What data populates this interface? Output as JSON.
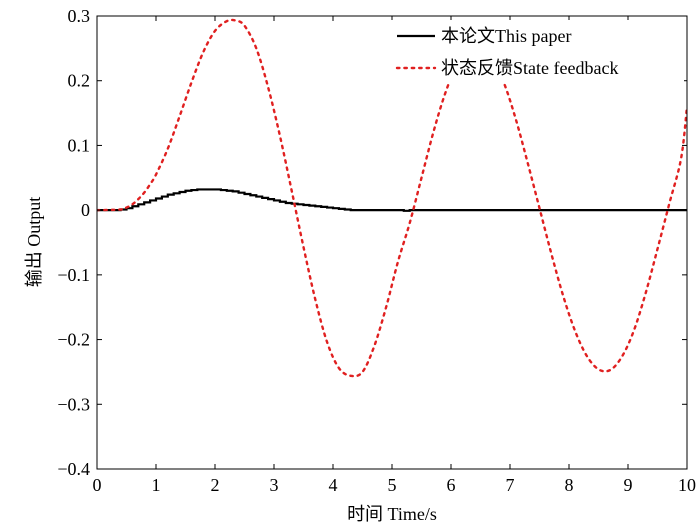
{
  "chart_data": {
    "type": "line",
    "title": "",
    "xlabel": "时间 Time/s",
    "ylabel": "输出 Output",
    "xlim": [
      0,
      10
    ],
    "ylim": [
      -0.4,
      0.3
    ],
    "xticks": [
      "0",
      "1",
      "2",
      "3",
      "4",
      "5",
      "6",
      "7",
      "8",
      "9",
      "10"
    ],
    "yticks": [
      "0.3",
      "0.2",
      "0.1",
      "0",
      "−0.1",
      "−0.2",
      "−0.3",
      "−0.4"
    ],
    "ytick_values": [
      0.3,
      0.2,
      0.1,
      0,
      -0.1,
      -0.2,
      -0.3,
      -0.4
    ],
    "grid": false,
    "legend_position": "top-right",
    "series": [
      {
        "name": "本论文This paper",
        "color": "#000000",
        "style": "solid-staircase",
        "x": [
          0,
          0.4,
          0.5,
          0.6,
          0.7,
          0.8,
          0.9,
          1.0,
          1.1,
          1.2,
          1.3,
          1.4,
          1.5,
          1.6,
          1.7,
          1.8,
          1.9,
          2.0,
          2.1,
          2.2,
          2.3,
          2.4,
          2.5,
          2.6,
          2.7,
          2.8,
          2.9,
          3.0,
          3.1,
          3.2,
          3.3,
          3.4,
          3.5,
          3.6,
          3.7,
          3.8,
          3.9,
          4.0,
          4.1,
          4.2,
          4.3,
          5.2,
          5.3,
          10
        ],
        "y": [
          0,
          0.001,
          0.003,
          0.006,
          0.009,
          0.012,
          0.015,
          0.018,
          0.021,
          0.024,
          0.026,
          0.028,
          0.03,
          0.031,
          0.032,
          0.032,
          0.032,
          0.032,
          0.031,
          0.03,
          0.029,
          0.027,
          0.025,
          0.023,
          0.021,
          0.019,
          0.017,
          0.015,
          0.013,
          0.011,
          0.01,
          0.009,
          0.008,
          0.007,
          0.006,
          0.005,
          0.004,
          0.003,
          0.002,
          0.001,
          0,
          -0.001,
          0,
          0
        ]
      },
      {
        "name": "状态反馈State feedback",
        "color": "#e02020",
        "style": "dotted",
        "x": [
          0,
          0.4,
          0.5,
          0.6,
          0.7,
          0.8,
          0.9,
          1.0,
          1.2,
          1.4,
          1.6,
          1.8,
          2.0,
          2.2,
          2.35,
          2.5,
          2.7,
          2.9,
          3.1,
          3.3,
          3.5,
          3.7,
          3.9,
          4.1,
          4.3,
          4.5,
          4.7,
          4.9,
          5.1,
          5.3,
          5.5,
          5.7,
          5.9,
          6.1,
          6.3,
          6.5,
          6.7,
          6.9,
          7.1,
          7.3,
          7.5,
          7.7,
          7.9,
          8.1,
          8.3,
          8.5,
          8.7,
          8.9,
          9.1,
          9.3,
          9.5,
          9.7,
          9.9,
          10.0
        ],
        "y": [
          0,
          0.001,
          0.004,
          0.009,
          0.017,
          0.027,
          0.04,
          0.055,
          0.095,
          0.145,
          0.197,
          0.244,
          0.277,
          0.292,
          0.293,
          0.285,
          0.25,
          0.19,
          0.115,
          0.03,
          -0.057,
          -0.138,
          -0.204,
          -0.244,
          -0.256,
          -0.25,
          -0.21,
          -0.15,
          -0.08,
          -0.02,
          0.05,
          0.12,
          0.18,
          0.225,
          0.25,
          0.252,
          0.234,
          0.196,
          0.14,
          0.073,
          0.003,
          -0.067,
          -0.132,
          -0.186,
          -0.225,
          -0.246,
          -0.247,
          -0.226,
          -0.186,
          -0.128,
          -0.06,
          0.01,
          0.08,
          0.16
        ]
      }
    ]
  }
}
